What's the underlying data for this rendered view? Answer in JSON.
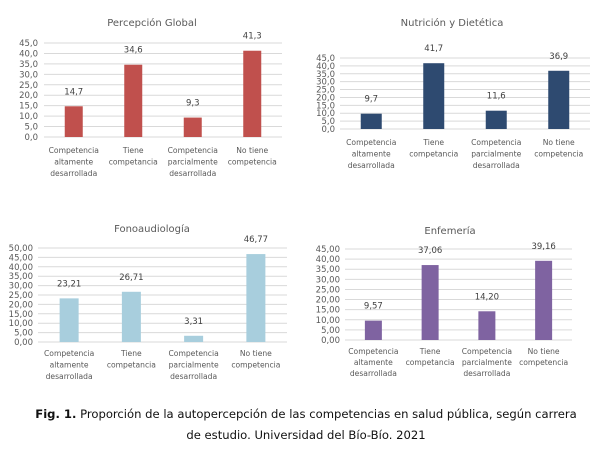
{
  "chart_data": [
    {
      "type": "bar",
      "title": "Percepción Global",
      "categories": [
        "Competencia altamente desarrollada",
        "Tiene competancia",
        "Competencia parcialmente desarrollada",
        "No tiene competencia"
      ],
      "category_lines": [
        [
          "Competencia",
          "altamente",
          "desarrollada"
        ],
        [
          "Tiene",
          "competancia"
        ],
        [
          "Competencia",
          "parcialmente",
          "desarrollada"
        ],
        [
          "No tiene",
          "competencia"
        ]
      ],
      "values": [
        14.7,
        34.6,
        9.3,
        41.3
      ],
      "value_labels": [
        "14,7",
        "34,6",
        "9,3",
        "41,3"
      ],
      "ylim": [
        0,
        45
      ],
      "yticks": [
        "0,0",
        "5,0",
        "10,0",
        "15,0",
        "20,0",
        "25,0",
        "30,0",
        "35,0",
        "40,0",
        "45,0"
      ],
      "color": "#C0504D",
      "grid": true,
      "xlabel": "",
      "ylabel": ""
    },
    {
      "type": "bar",
      "title": "Nutrición y Dietética",
      "categories": [
        "Competencia altamente desarrollada",
        "Tiene competancia",
        "Competencia parcialmente desarrollada",
        "No tiene competencia"
      ],
      "category_lines": [
        [
          "Competencia",
          "altamente",
          "desarrollada"
        ],
        [
          "Tiene",
          "competancia"
        ],
        [
          "Competencia",
          "parcialmente",
          "desarrollada"
        ],
        [
          "No tiene",
          "competencia"
        ]
      ],
      "values": [
        9.7,
        41.7,
        11.6,
        36.9
      ],
      "value_labels": [
        "9,7",
        "41,7",
        "11,6",
        "36,9"
      ],
      "ylim": [
        0,
        45
      ],
      "yticks": [
        "0,0",
        "5,0",
        "10,0",
        "15,0",
        "20,0",
        "25,0",
        "30,0",
        "35,0",
        "40,0",
        "45,0"
      ],
      "color": "#2E4A70",
      "grid": true,
      "xlabel": "",
      "ylabel": ""
    },
    {
      "type": "bar",
      "title": "Fonoaudiología",
      "categories": [
        "Competencia altamente desarrollada",
        "Tiene competancia",
        "Competencia parcialmente desarrollada",
        "No tiene competencia"
      ],
      "category_lines": [
        [
          "Competencia",
          "altamente",
          "desarrollada"
        ],
        [
          "Tiene",
          "competancia"
        ],
        [
          "Competencia",
          "parcialmente",
          "desarrollada"
        ],
        [
          "No tiene",
          "competencia"
        ]
      ],
      "values": [
        23.21,
        26.71,
        3.31,
        46.77
      ],
      "value_labels": [
        "23,21",
        "26,71",
        "3,31",
        "46,77"
      ],
      "ylim": [
        0,
        50
      ],
      "yticks": [
        "0,00",
        "5,00",
        "10,00",
        "15,00",
        "20,00",
        "25,00",
        "30,00",
        "35,00",
        "40,00",
        "45,00",
        "50,00"
      ],
      "color": "#A8CEDD",
      "grid": true,
      "xlabel": "",
      "ylabel": ""
    },
    {
      "type": "bar",
      "title": "Enfemería",
      "categories": [
        "Competencia altamente desarrollada",
        "Tiene competancia",
        "Competencia parcialmente desarrollada",
        "No tiene competencia"
      ],
      "category_lines": [
        [
          "Competencia",
          "altamente",
          "desarrollada"
        ],
        [
          "Tiene",
          "competancia"
        ],
        [
          "Competencia",
          "parcialmente",
          "desarrollada"
        ],
        [
          "No tiene",
          "competencia"
        ]
      ],
      "values": [
        9.57,
        37.06,
        14.2,
        39.16
      ],
      "value_labels": [
        "9,57",
        "37,06",
        "14,20",
        "39,16"
      ],
      "ylim": [
        0,
        45
      ],
      "yticks": [
        "0,00",
        "5,00",
        "10,00",
        "15,00",
        "20,00",
        "25,00",
        "30,00",
        "35,00",
        "40,00",
        "45,00"
      ],
      "color": "#7F63A1",
      "grid": true,
      "xlabel": "",
      "ylabel": ""
    }
  ],
  "caption": {
    "label": "Fig. 1.",
    "line1": " Proporción de la autopercepción de las competencias en salud pública, según carrera",
    "line2": "de estudio. Universidad del Bío-Bío. 2021"
  }
}
